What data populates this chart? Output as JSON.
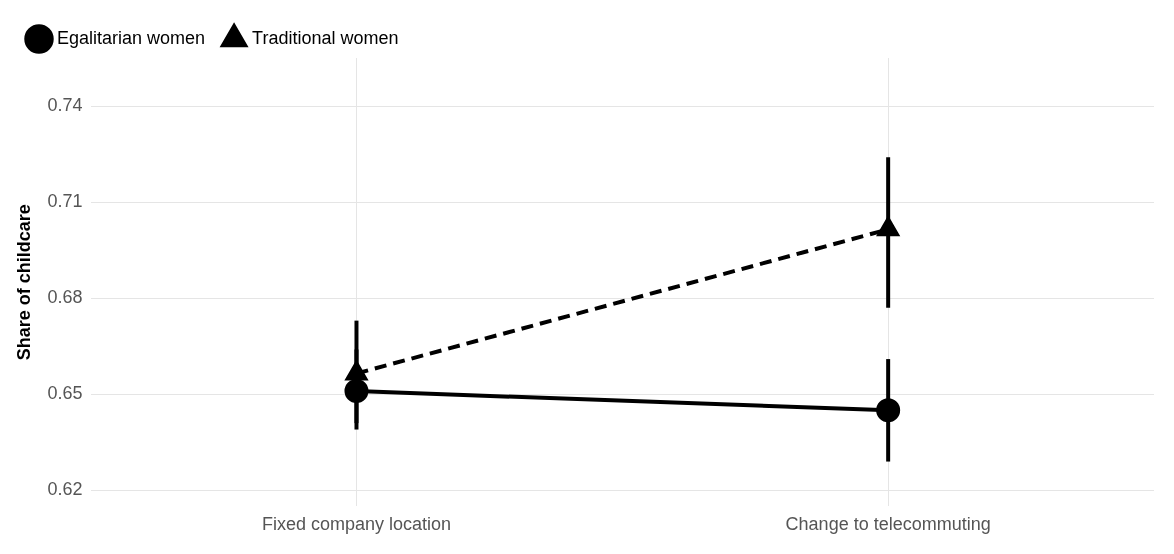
{
  "chart_data": {
    "type": "line",
    "ylabel": "Share of childcare",
    "categories": [
      "Fixed company location",
      "Change to telecommuting"
    ],
    "series": [
      {
        "name": "Egalitarian women",
        "color": "#000000",
        "values": [
          0.651,
          0.645
        ],
        "errors": [
          [
            0.639,
            0.664
          ],
          [
            0.629,
            0.661
          ]
        ],
        "marker": "circle",
        "line_style": "solid"
      },
      {
        "name": "Traditional women",
        "color": "#000000",
        "values": [
          0.6565,
          0.7015
        ],
        "errors": [
          [
            0.641,
            0.673
          ],
          [
            0.677,
            0.724
          ]
        ],
        "marker": "triangle",
        "line_style": "dashed"
      }
    ],
    "ylim": [
      0.615,
      0.755
    ],
    "yticks": [
      0.62,
      0.65,
      0.68,
      0.71,
      0.74
    ],
    "grid": true,
    "legend": "top left"
  }
}
